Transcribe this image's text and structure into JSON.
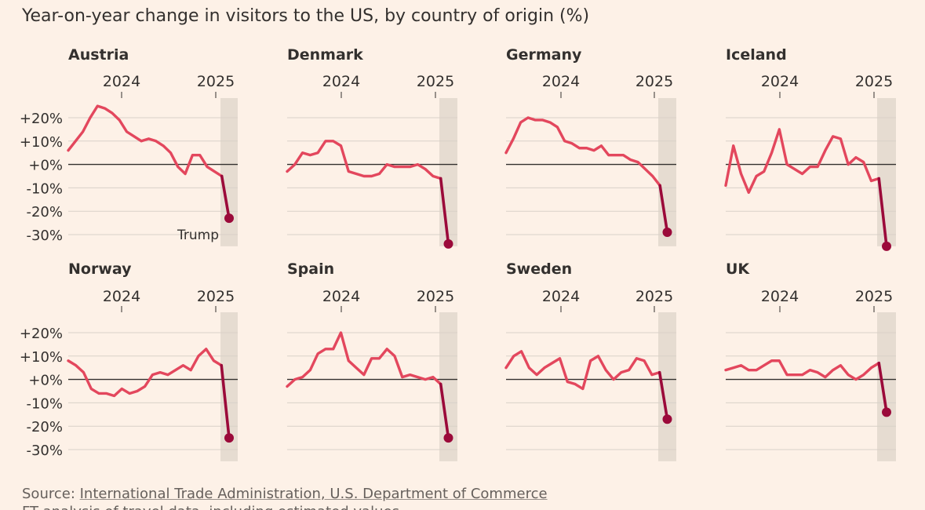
{
  "title": "Year-on-year change in visitors to the US, by country of origin (%)",
  "source": {
    "prefix": "Source: ",
    "link_text": "International Trade Administration, U.S. Department of Commerce"
  },
  "note": "FT analysis of travel data, including estimated values",
  "colors": {
    "background": "#fdf1e7",
    "line": "#e3475d",
    "highlight": "#9b0a3a",
    "shade": "#e6dcd1",
    "grid": "#d9d1c8",
    "zero": "#33302e"
  },
  "chart_data": [
    {
      "type": "line",
      "title": "Austria",
      "year_ticks": [
        "2024",
        "2025"
      ],
      "y_ticks": [
        "+20%",
        "+10%",
        "+0%",
        "-10%",
        "-20%",
        "-30%"
      ],
      "ylim": [
        -35,
        28
      ],
      "annotation": "Trump",
      "values": [
        6,
        10,
        14,
        20,
        25,
        24,
        22,
        19,
        14,
        12,
        10,
        11,
        10,
        8,
        5,
        -1,
        -4,
        4,
        4,
        -1,
        -3,
        -5,
        -23
      ]
    },
    {
      "type": "line",
      "title": "Denmark",
      "year_ticks": [
        "2024",
        "2025"
      ],
      "y_ticks": [],
      "ylim": [
        -35,
        28
      ],
      "values": [
        -3,
        0,
        5,
        4,
        5,
        10,
        10,
        8,
        -3,
        -4,
        -5,
        -5,
        -4,
        0,
        -1,
        -1,
        -1,
        0,
        -2,
        -5,
        -6,
        -34
      ]
    },
    {
      "type": "line",
      "title": "Germany",
      "year_ticks": [
        "2024",
        "2025"
      ],
      "y_ticks": [],
      "ylim": [
        -35,
        28
      ],
      "values": [
        5,
        11,
        18,
        20,
        19,
        19,
        18,
        16,
        10,
        9,
        7,
        7,
        6,
        8,
        4,
        4,
        4,
        2,
        1,
        -2,
        -5,
        -9,
        -29
      ]
    },
    {
      "type": "line",
      "title": "Iceland",
      "year_ticks": [
        "2024",
        "2025"
      ],
      "y_ticks": [],
      "ylim": [
        -35,
        28
      ],
      "values": [
        -9,
        8,
        -4,
        -12,
        -5,
        -3,
        5,
        15,
        0,
        -2,
        -4,
        -1,
        -1,
        6,
        12,
        11,
        0,
        3,
        1,
        -7,
        -6,
        -35
      ]
    },
    {
      "type": "line",
      "title": "Norway",
      "year_ticks": [
        "2024",
        "2025"
      ],
      "y_ticks": [
        "+20%",
        "+10%",
        "+0%",
        "-10%",
        "-20%",
        "-30%"
      ],
      "ylim": [
        -35,
        28
      ],
      "values": [
        8,
        6,
        3,
        -4,
        -6,
        -6,
        -7,
        -4,
        -6,
        -5,
        -3,
        2,
        3,
        2,
        4,
        6,
        4,
        10,
        13,
        8,
        6,
        -25
      ]
    },
    {
      "type": "line",
      "title": "Spain",
      "year_ticks": [
        "2024",
        "2025"
      ],
      "y_ticks": [],
      "ylim": [
        -35,
        28
      ],
      "values": [
        -3,
        0,
        1,
        4,
        11,
        13,
        13,
        20,
        8,
        5,
        2,
        9,
        9,
        13,
        10,
        1,
        2,
        1,
        0,
        1,
        -2,
        -25
      ]
    },
    {
      "type": "line",
      "title": "Sweden",
      "year_ticks": [
        "2024",
        "2025"
      ],
      "y_ticks": [],
      "ylim": [
        -35,
        28
      ],
      "values": [
        5,
        10,
        12,
        5,
        2,
        5,
        7,
        9,
        -1,
        -2,
        -4,
        8,
        10,
        4,
        0,
        3,
        4,
        9,
        8,
        2,
        3,
        -17
      ]
    },
    {
      "type": "line",
      "title": "UK",
      "year_ticks": [
        "2024",
        "2025"
      ],
      "y_ticks": [],
      "ylim": [
        -35,
        28
      ],
      "values": [
        4,
        5,
        6,
        4,
        4,
        6,
        8,
        8,
        2,
        2,
        2,
        4,
        3,
        1,
        4,
        6,
        2,
        0,
        2,
        5,
        7,
        -14
      ]
    }
  ]
}
